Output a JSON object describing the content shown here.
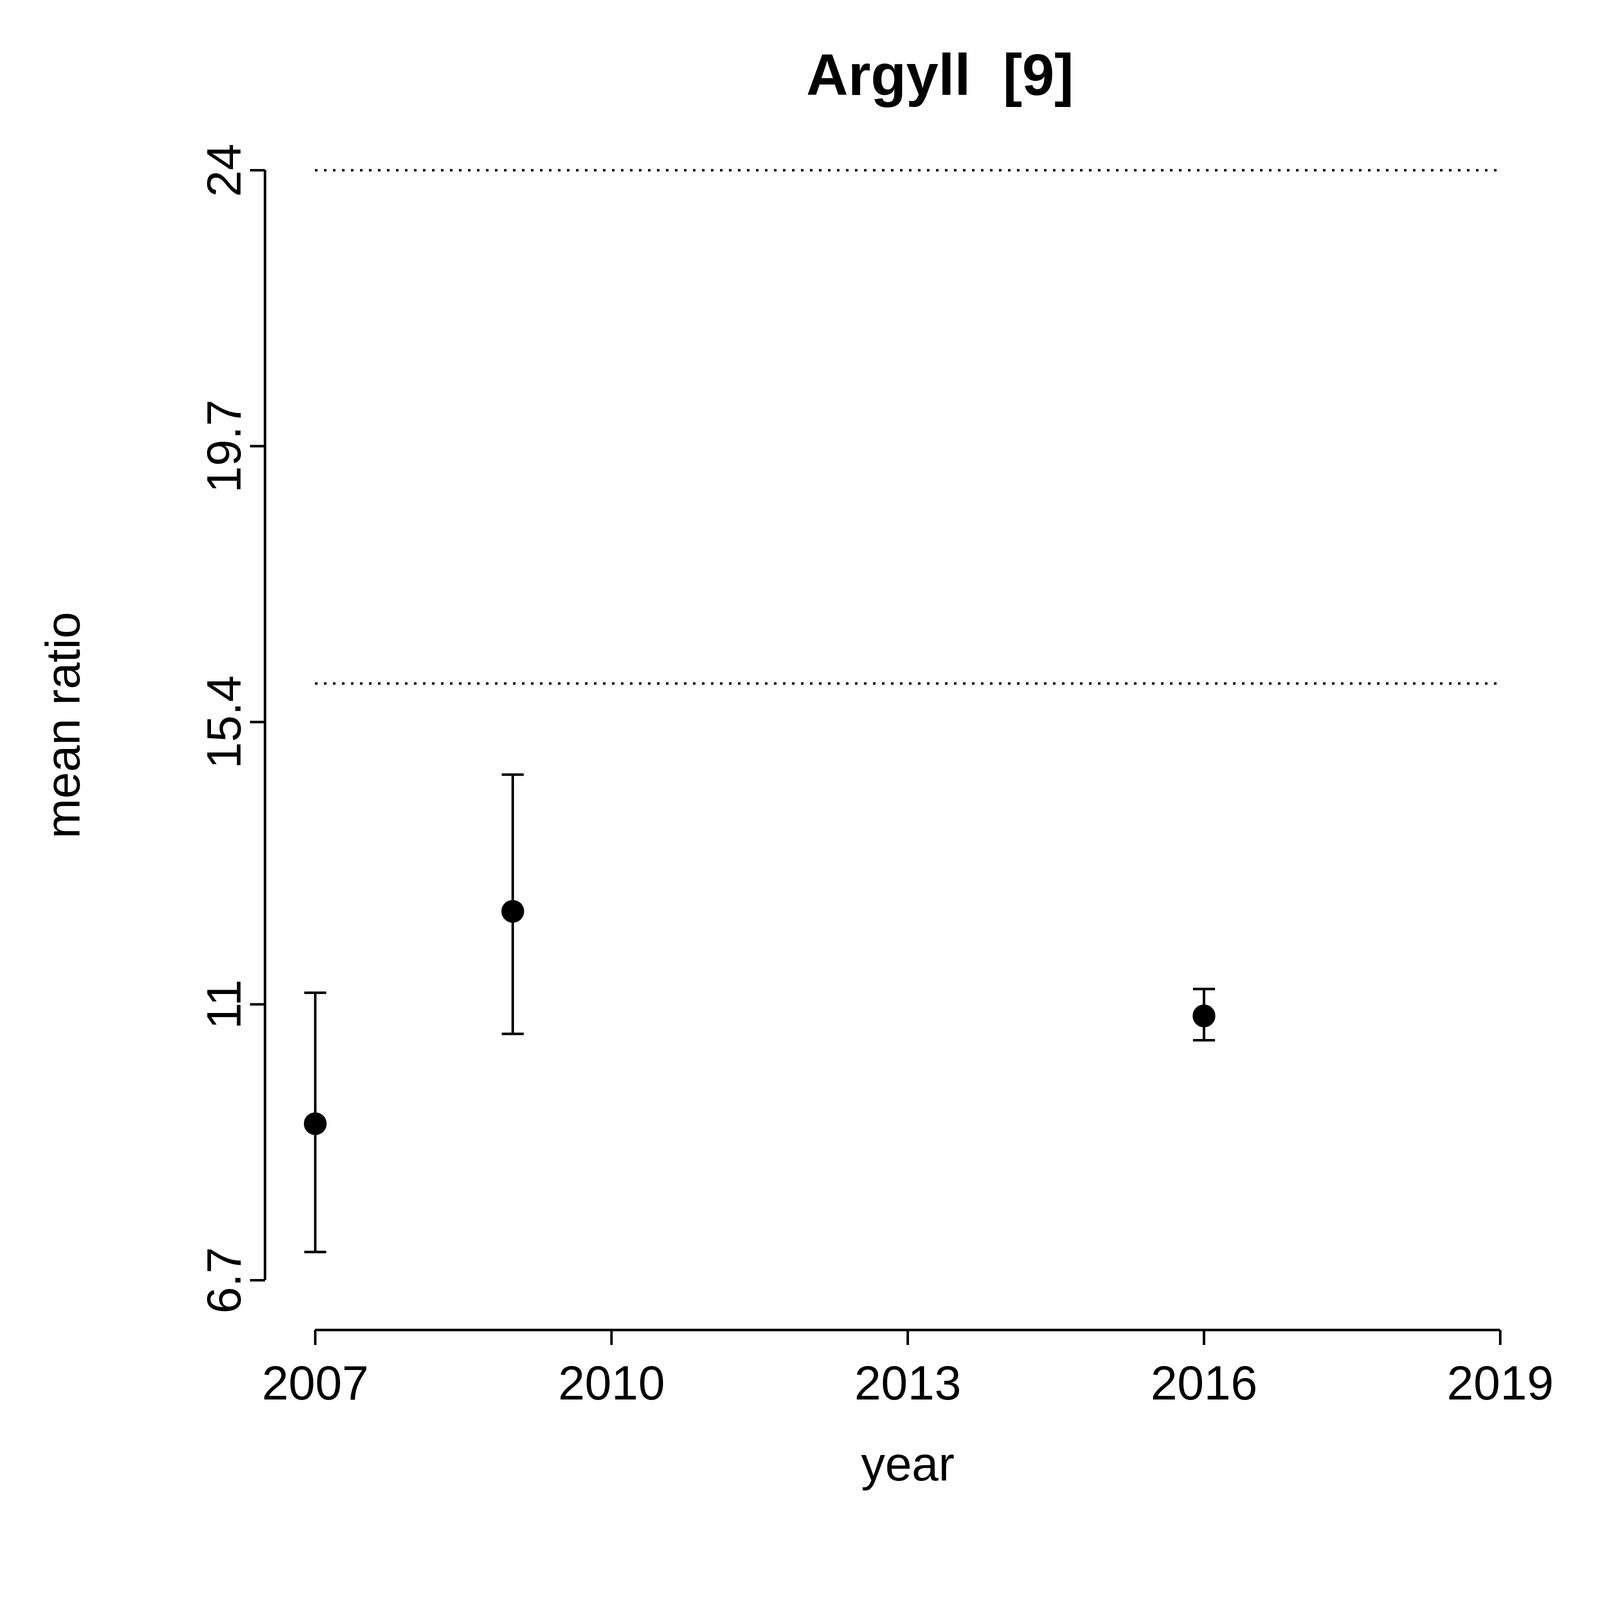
{
  "chart_data": {
    "type": "scatter",
    "title": "Argyll  [9]",
    "x_label": "year",
    "y_label": "mean ratio",
    "x": [
      2007,
      2009,
      2016
    ],
    "values": [
      9.14,
      12.45,
      10.82
    ],
    "error_lower": [
      7.14,
      10.54,
      10.44
    ],
    "error_upper": [
      11.18,
      14.58,
      11.24
    ],
    "reference_lines": [
      16.0,
      24.0
    ],
    "line_style": "dotted",
    "xlim": [
      2007,
      2019
    ],
    "ylim": [
      6.7,
      24
    ],
    "xticks": [
      2007,
      2010,
      2013,
      2016,
      2019
    ],
    "yticks": [
      6.7,
      11,
      15.4,
      19.7,
      24
    ],
    "color": "#000000",
    "marker": "circle",
    "grid": false
  }
}
